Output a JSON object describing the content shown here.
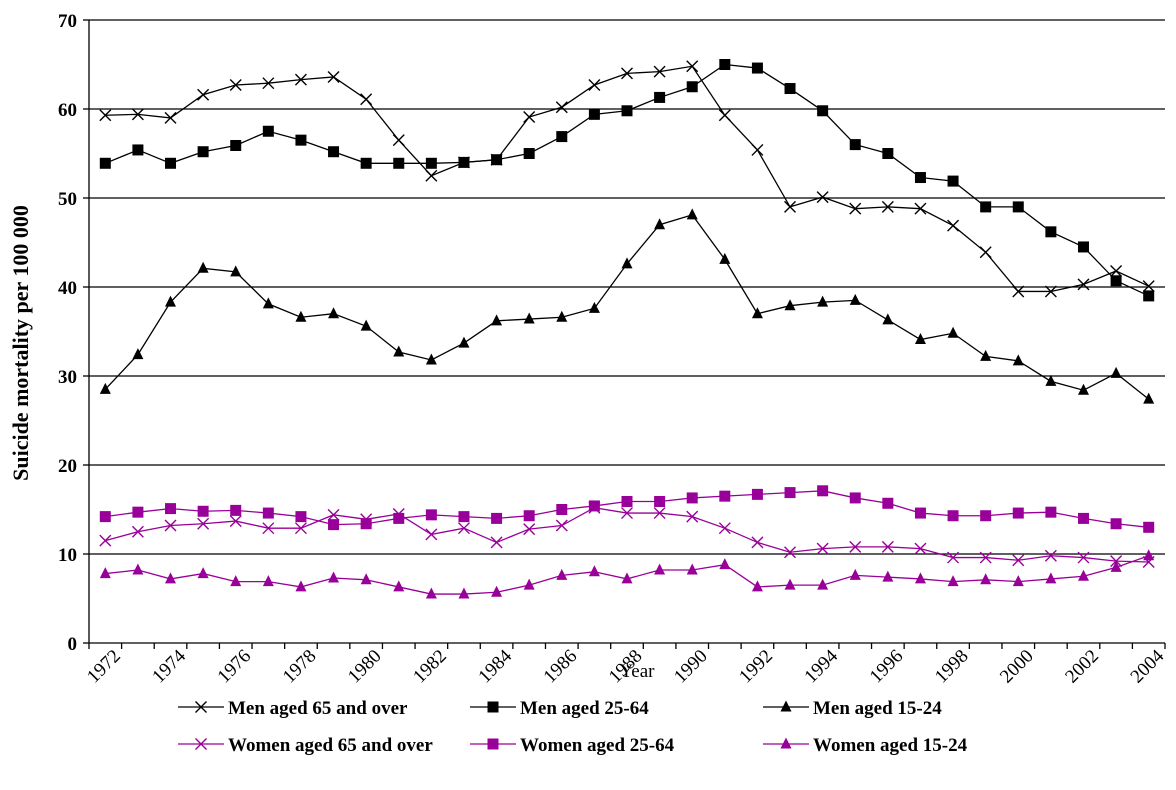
{
  "chart_data": {
    "type": "line",
    "title": "",
    "xlabel": "Year",
    "ylabel": "Suicide mortality per 100 000",
    "ylim": [
      0,
      70
    ],
    "yticks": [
      0,
      10,
      20,
      30,
      40,
      50,
      60,
      70
    ],
    "xlim": [
      1972,
      2004
    ],
    "xticks": [
      1972,
      1974,
      1976,
      1978,
      1980,
      1982,
      1984,
      1986,
      1988,
      1990,
      1992,
      1994,
      1996,
      1998,
      2000,
      2002,
      2004
    ],
    "grid": "horizontal",
    "legend_position": "bottom",
    "x": [
      1972,
      1973,
      1974,
      1975,
      1976,
      1977,
      1978,
      1979,
      1980,
      1981,
      1982,
      1983,
      1984,
      1985,
      1986,
      1987,
      1988,
      1989,
      1990,
      1991,
      1992,
      1993,
      1994,
      1995,
      1996,
      1997,
      1998,
      1999,
      2000,
      2001,
      2002,
      2003,
      2004
    ],
    "series": [
      {
        "name": "Men aged 65 and over",
        "color": "#000000",
        "marker": "x",
        "values": [
          59.3,
          59.4,
          59.0,
          61.6,
          62.7,
          62.9,
          63.3,
          63.6,
          61.1,
          56.5,
          52.5,
          54.0,
          54.3,
          59.1,
          60.2,
          62.7,
          64.0,
          64.2,
          64.8,
          59.3,
          55.4,
          49.0,
          50.1,
          48.8,
          49.0,
          48.8,
          46.9,
          43.9,
          39.5,
          39.5,
          40.3,
          41.8,
          40.1
        ]
      },
      {
        "name": "Men aged 25-64",
        "color": "#000000",
        "marker": "square",
        "values": [
          53.9,
          55.4,
          53.9,
          55.2,
          55.9,
          57.5,
          56.5,
          55.2,
          53.9,
          53.9,
          53.9,
          54.0,
          54.3,
          55.0,
          56.9,
          59.4,
          59.8,
          61.3,
          62.5,
          65.0,
          64.6,
          62.3,
          59.8,
          56.0,
          55.0,
          52.3,
          51.9,
          49.0,
          49.0,
          46.2,
          44.5,
          40.7,
          39.0
        ]
      },
      {
        "name": "Men aged 15-24",
        "color": "#000000",
        "marker": "triangle",
        "values": [
          28.5,
          32.4,
          38.3,
          42.1,
          41.7,
          38.1,
          36.6,
          37.0,
          35.6,
          32.7,
          31.8,
          33.7,
          36.2,
          36.4,
          36.6,
          37.6,
          42.6,
          47.0,
          48.1,
          43.1,
          37.0,
          37.9,
          38.3,
          38.5,
          36.3,
          34.1,
          34.8,
          32.2,
          31.7,
          29.4,
          28.4,
          30.3,
          27.4
        ]
      },
      {
        "name": "Women aged 65 and over",
        "color": "#990099",
        "marker": "x",
        "values": [
          11.5,
          12.5,
          13.2,
          13.4,
          13.7,
          12.9,
          12.9,
          14.4,
          13.9,
          14.5,
          12.2,
          12.9,
          11.3,
          12.8,
          13.2,
          15.2,
          14.6,
          14.6,
          14.2,
          12.9,
          11.3,
          10.2,
          10.6,
          10.8,
          10.8,
          10.6,
          9.6,
          9.6,
          9.3,
          9.8,
          9.6,
          9.2,
          9.1
        ]
      },
      {
        "name": "Women aged 25-64",
        "color": "#990099",
        "marker": "square",
        "values": [
          14.2,
          14.7,
          15.1,
          14.8,
          14.9,
          14.6,
          14.2,
          13.3,
          13.4,
          14.0,
          14.4,
          14.2,
          14.0,
          14.3,
          15.0,
          15.4,
          15.9,
          15.9,
          16.3,
          16.5,
          16.7,
          16.9,
          17.1,
          16.3,
          15.7,
          14.6,
          14.3,
          14.3,
          14.6,
          14.7,
          14.0,
          13.4,
          13.0
        ]
      },
      {
        "name": "Women aged 15-24",
        "color": "#990099",
        "marker": "triangle",
        "values": [
          7.8,
          8.2,
          7.2,
          7.8,
          6.9,
          6.9,
          6.3,
          7.3,
          7.1,
          6.3,
          5.5,
          5.5,
          5.7,
          6.5,
          7.6,
          8.0,
          7.2,
          8.2,
          8.2,
          8.8,
          6.3,
          6.5,
          6.5,
          7.6,
          7.4,
          7.2,
          6.9,
          7.1,
          6.9,
          7.2,
          7.5,
          8.5,
          9.8
        ]
      }
    ]
  }
}
